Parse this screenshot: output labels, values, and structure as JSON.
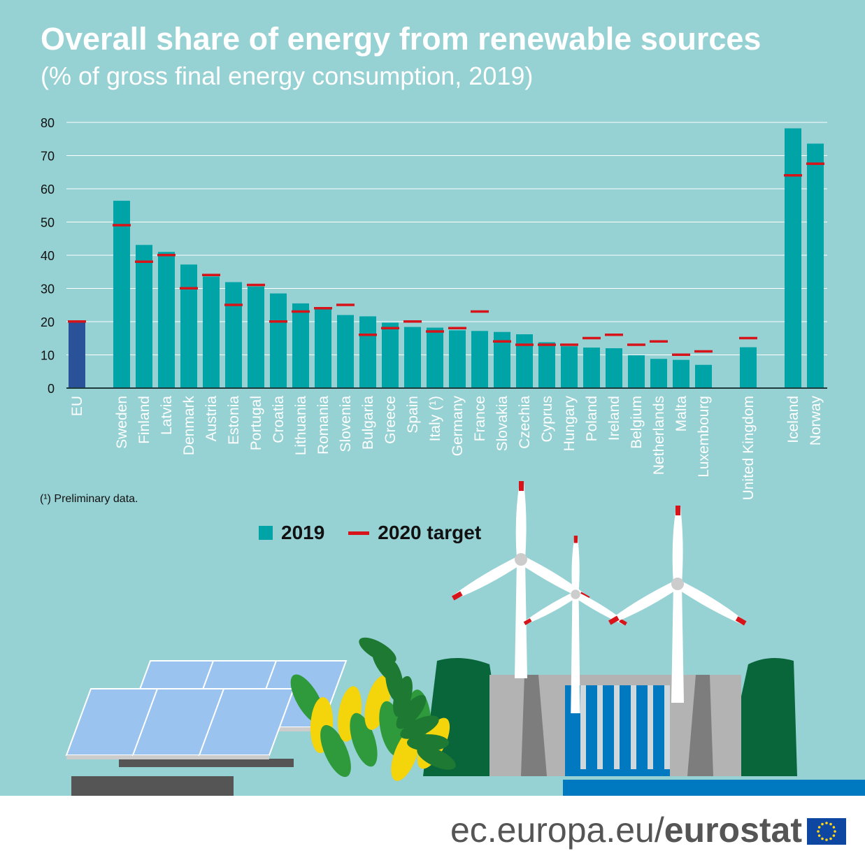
{
  "title": "Overall share of energy from renewable sources",
  "subtitle": "(% of gross final energy consumption, 2019)",
  "footnote": "(¹) Preliminary data.",
  "legend": {
    "bar": "2019",
    "line": "2020 target"
  },
  "footer": {
    "url_prefix": "ec.europa.eu/",
    "url_brand": "eurostat"
  },
  "colors": {
    "background": "#96d1d3",
    "bar": "#00a4a6",
    "eu_bar": "#2a5298",
    "target": "#d7141a"
  },
  "chart_data": {
    "type": "bar",
    "title": "Overall share of energy from renewable sources",
    "subtitle": "(% of gross final energy consumption, 2019)",
    "ylim": [
      0,
      80
    ],
    "yticks": [
      0,
      10,
      20,
      30,
      40,
      50,
      60,
      70,
      80
    ],
    "grid": true,
    "legend_placement": "bottom",
    "categories": [
      "EU",
      "Sweden",
      "Finland",
      "Latvia",
      "Denmark",
      "Austria",
      "Estonia",
      "Portugal",
      "Croatia",
      "Lithuania",
      "Romania",
      "Slovenia",
      "Bulgaria",
      "Greece",
      "Spain",
      "Italy (¹)",
      "Germany",
      "France",
      "Slovakia",
      "Czechia",
      "Cyprus",
      "Hungary",
      "Poland",
      "Ireland",
      "Belgium",
      "Netherlands",
      "Malta",
      "Luxembourg",
      "United Kingdom",
      "Iceland",
      "Norway"
    ],
    "series": [
      {
        "name": "2019",
        "values": [
          19.7,
          56.4,
          43.1,
          41.0,
          37.2,
          33.6,
          31.9,
          30.6,
          28.5,
          25.5,
          24.3,
          22.0,
          21.6,
          19.7,
          18.4,
          18.2,
          17.4,
          17.2,
          16.9,
          16.2,
          13.8,
          12.6,
          12.2,
          12.0,
          9.9,
          8.8,
          8.5,
          7.0,
          12.3,
          78.2,
          73.6
        ]
      },
      {
        "name": "2020 target",
        "values": [
          20,
          49,
          38,
          40,
          30,
          34,
          25,
          31,
          20,
          23,
          24,
          25,
          16,
          18,
          20,
          17,
          18,
          23,
          14,
          13,
          13,
          13,
          15,
          16,
          13,
          14,
          10,
          11,
          15,
          64,
          67.5
        ]
      }
    ]
  }
}
